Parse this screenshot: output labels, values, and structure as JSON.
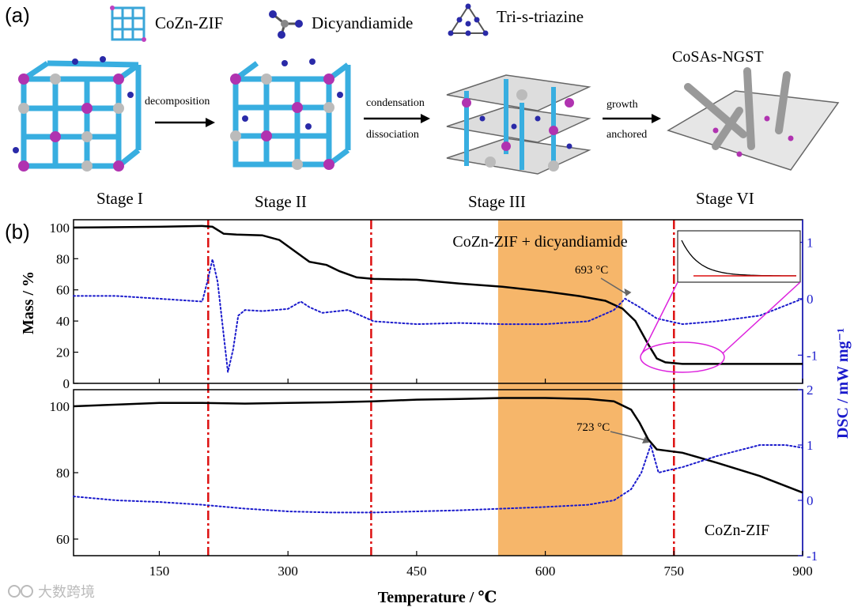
{
  "panel_a": {
    "label": "(a)",
    "legend": [
      {
        "icon": "cube-framework-icon",
        "label": "CoZn-ZIF"
      },
      {
        "icon": "molecule-icon",
        "label": "Dicyandiamide"
      },
      {
        "icon": "triazine-icon",
        "label": "Tri-s-triazine"
      }
    ],
    "product_label": "CoSAs-NGST",
    "stages": [
      "Stage I",
      "Stage II",
      "Stage III",
      "Stage VI"
    ],
    "arrows": [
      {
        "top": "decomposition",
        "bottom": ""
      },
      {
        "top": "condensation",
        "bottom": "dissociation"
      },
      {
        "top": "growth",
        "bottom": "anchored"
      }
    ]
  },
  "panel_b_label": "(b)",
  "watermark": "大数跨境",
  "colors": {
    "mass": "#000000",
    "dsc": "#1a1acc",
    "vline": "#dd1111",
    "band": "#f6b66a",
    "zoom": "#dd22dd"
  },
  "chart_data": [
    {
      "type": "line",
      "title": "CoZn-ZIF + dicyandiamide",
      "xlabel": "Temperature / ℃",
      "ylabel": "Mass / %",
      "y2label": "DSC / mW mg⁻¹",
      "xlim": [
        50,
        900
      ],
      "ylim": [
        0,
        105
      ],
      "y2lim": [
        -1.5,
        1.4
      ],
      "xticks": [
        150,
        300,
        450,
        600,
        750,
        900
      ],
      "yticks": [
        0,
        20,
        40,
        60,
        80,
        100
      ],
      "y2ticks": [
        -1,
        0,
        1
      ],
      "annotation": {
        "text": "693 °C",
        "x": 693,
        "y2": 0.0
      },
      "series": [
        {
          "name": "Mass",
          "axis": "left",
          "style": "solid",
          "x": [
            50,
            150,
            200,
            212,
            225,
            240,
            270,
            290,
            310,
            325,
            345,
            360,
            380,
            400,
            450,
            500,
            550,
            600,
            640,
            670,
            690,
            705,
            720,
            730,
            740,
            760,
            800,
            900
          ],
          "y": [
            100,
            100.5,
            101,
            100.5,
            96,
            95.5,
            95,
            92,
            84,
            78,
            76,
            72,
            68,
            67,
            66.5,
            64,
            62,
            59,
            56,
            53,
            48,
            40,
            25,
            16,
            13.5,
            12.5,
            12.5,
            12.5
          ]
        },
        {
          "name": "DSC",
          "axis": "right",
          "style": "dotted",
          "x": [
            50,
            100,
            150,
            200,
            206,
            212,
            218,
            224,
            230,
            236,
            242,
            250,
            270,
            300,
            315,
            325,
            340,
            370,
            400,
            450,
            500,
            550,
            600,
            650,
            680,
            693,
            710,
            730,
            760,
            800,
            850,
            900
          ],
          "y": [
            0.05,
            0.05,
            0.0,
            -0.05,
            0.3,
            0.7,
            0.3,
            -0.5,
            -1.3,
            -0.9,
            -0.3,
            -0.2,
            -0.22,
            -0.18,
            -0.05,
            -0.15,
            -0.25,
            -0.2,
            -0.4,
            -0.45,
            -0.43,
            -0.45,
            -0.45,
            -0.4,
            -0.2,
            0.0,
            -0.15,
            -0.35,
            -0.45,
            -0.4,
            -0.3,
            0.0
          ]
        }
      ]
    },
    {
      "type": "line",
      "title": "CoZn-ZIF",
      "xlabel": "Temperature / ℃",
      "ylabel": "Mass / %",
      "y2label": "DSC / mW mg⁻¹",
      "xlim": [
        50,
        900
      ],
      "ylim": [
        55,
        105
      ],
      "y2lim": [
        -1,
        2
      ],
      "xticks": [
        150,
        300,
        450,
        600,
        750,
        900
      ],
      "yticks": [
        60,
        80,
        100
      ],
      "y2ticks": [
        -1,
        0,
        1,
        2
      ],
      "annotation": {
        "text": "723 °C",
        "x": 723,
        "y2": 1.0
      },
      "series": [
        {
          "name": "Mass",
          "axis": "left",
          "style": "solid",
          "x": [
            50,
            100,
            150,
            200,
            250,
            300,
            350,
            400,
            450,
            500,
            550,
            600,
            650,
            680,
            700,
            710,
            720,
            730,
            760,
            800,
            850,
            900
          ],
          "y": [
            100,
            100.5,
            101,
            101,
            100.8,
            101,
            101.2,
            101.5,
            102,
            102.2,
            102.5,
            102.5,
            102.2,
            101.5,
            99,
            95,
            90,
            87,
            86,
            83,
            79,
            74
          ]
        },
        {
          "name": "DSC",
          "axis": "right",
          "style": "dotted",
          "x": [
            50,
            100,
            150,
            200,
            250,
            300,
            350,
            400,
            450,
            500,
            550,
            600,
            650,
            680,
            700,
            712,
            723,
            732,
            745,
            760,
            800,
            850,
            880,
            900
          ],
          "y": [
            0.07,
            0.0,
            -0.03,
            -0.08,
            -0.15,
            -0.2,
            -0.22,
            -0.22,
            -0.2,
            -0.18,
            -0.15,
            -0.12,
            -0.08,
            0.0,
            0.2,
            0.5,
            1.0,
            0.5,
            0.55,
            0.6,
            0.8,
            1.0,
            1.0,
            0.95
          ]
        }
      ]
    }
  ]
}
